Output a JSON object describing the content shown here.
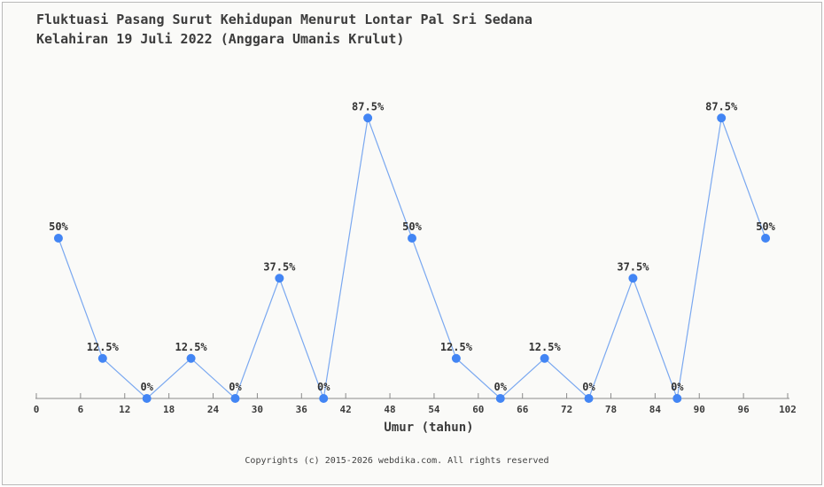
{
  "title": {
    "line1": "Fluktuasi Pasang Surut Kehidupan Menurut Lontar Pal Sri Sedana",
    "line2": "Kelahiran 19 Juli 2022 (Anggara Umanis Krulut)"
  },
  "chart_data": {
    "type": "line",
    "x": [
      3,
      9,
      15,
      21,
      27,
      33,
      39,
      45,
      51,
      57,
      63,
      69,
      75,
      81,
      87,
      93,
      99
    ],
    "values": [
      50,
      12.5,
      0,
      12.5,
      0,
      37.5,
      0,
      87.5,
      50,
      12.5,
      0,
      12.5,
      0,
      37.5,
      0,
      87.5,
      50
    ],
    "point_labels": [
      "50%",
      "12.5%",
      "0%",
      "12.5%",
      "0%",
      "37.5%",
      "0%",
      "87.5%",
      "50%",
      "12.5%",
      "0%",
      "12.5%",
      "0%",
      "37.5%",
      "0%",
      "87.5%",
      "50%"
    ],
    "xlabel": "Umur (tahun)",
    "ylabel": "",
    "xlim": [
      0,
      102
    ],
    "ylim": [
      0,
      100
    ],
    "x_ticks": [
      0,
      6,
      12,
      18,
      24,
      30,
      36,
      42,
      48,
      54,
      60,
      66,
      72,
      78,
      84,
      90,
      96,
      102
    ],
    "grid": false,
    "legend": false,
    "colors": {
      "line": "#7aa8f0",
      "marker": "#4285f4",
      "axis": "#8a8a8a"
    }
  },
  "footer": {
    "text": "Copyrights (c) 2015-2026 webdika.com. All rights reserved"
  }
}
